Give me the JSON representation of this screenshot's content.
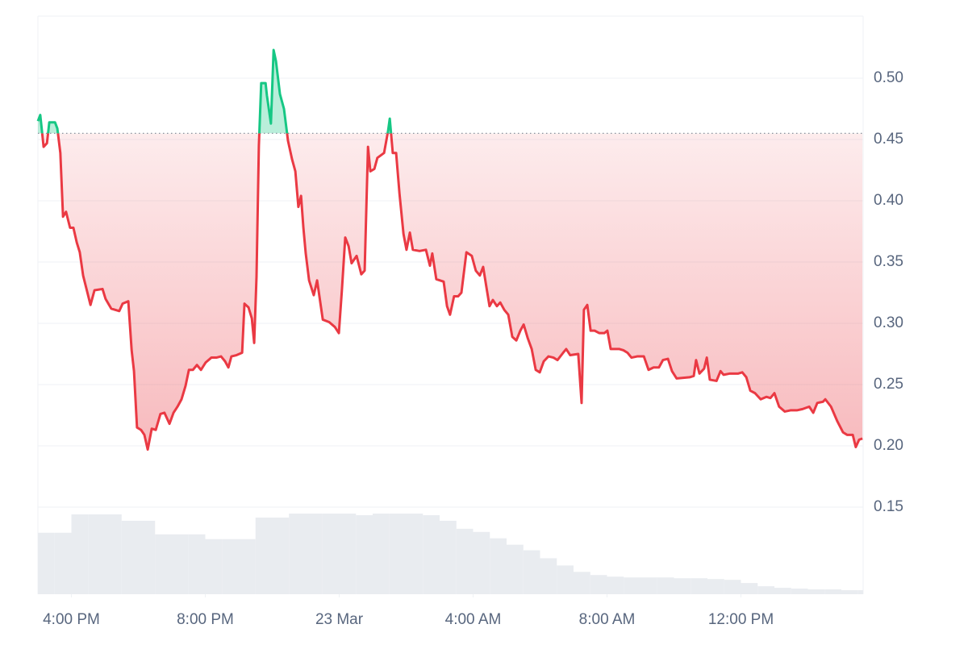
{
  "chart_data": {
    "type": "line",
    "color": "#ea3943",
    "up_color": "#16c784",
    "baseline": 0.455,
    "grid": true,
    "ylim": [
      0.08,
      0.55
    ],
    "yticks": [
      {
        "value": 0.15,
        "label": "0.15"
      },
      {
        "value": 0.2,
        "label": "0.20"
      },
      {
        "value": 0.25,
        "label": "0.25"
      },
      {
        "value": 0.3,
        "label": "0.30"
      },
      {
        "value": 0.35,
        "label": "0.35"
      },
      {
        "value": 0.4,
        "label": "0.40"
      },
      {
        "value": 0.45,
        "label": "0.45"
      },
      {
        "value": 0.5,
        "label": "0.50"
      }
    ],
    "xlim": [
      15,
      39.65
    ],
    "xticks": [
      {
        "value": 16,
        "label": "4:00 PM"
      },
      {
        "value": 20,
        "label": "8:00 PM"
      },
      {
        "value": 24,
        "label": "23 Mar"
      },
      {
        "value": 28,
        "label": "4:00 AM"
      },
      {
        "value": 32,
        "label": "8:00 AM"
      },
      {
        "value": 36,
        "label": "12:00 PM"
      }
    ],
    "x": [
      15.0,
      15.07,
      15.17,
      15.27,
      15.34,
      15.51,
      15.58,
      15.67,
      15.75,
      15.84,
      15.96,
      16.06,
      16.16,
      16.25,
      16.35,
      16.47,
      16.57,
      16.69,
      16.93,
      17.02,
      17.19,
      17.43,
      17.53,
      17.7,
      17.8,
      17.87,
      17.96,
      18.08,
      18.18,
      18.28,
      18.4,
      18.52,
      18.66,
      18.78,
      18.93,
      19.05,
      19.17,
      19.29,
      19.41,
      19.51,
      19.63,
      19.75,
      19.87,
      20.01,
      20.18,
      20.33,
      20.47,
      20.59,
      20.69,
      20.78,
      20.93,
      21.1,
      21.17,
      21.29,
      21.39,
      21.46,
      21.53,
      21.6,
      21.67,
      21.8,
      21.84,
      21.96,
      22.04,
      22.11,
      22.23,
      22.35,
      22.47,
      22.59,
      22.69,
      22.78,
      22.86,
      22.93,
      23.0,
      23.1,
      23.24,
      23.34,
      23.43,
      23.51,
      23.7,
      23.87,
      23.99,
      24.08,
      24.18,
      24.28,
      24.37,
      24.52,
      24.66,
      24.76,
      24.86,
      24.93,
      25.05,
      25.14,
      25.34,
      25.46,
      25.51,
      25.6,
      25.7,
      25.8,
      25.92,
      26.01,
      26.11,
      26.2,
      26.4,
      26.59,
      26.71,
      26.78,
      26.9,
      27.12,
      27.22,
      27.31,
      27.43,
      27.55,
      27.65,
      27.8,
      27.96,
      28.08,
      28.2,
      28.3,
      28.4,
      28.49,
      28.59,
      28.71,
      28.81,
      28.93,
      29.05,
      29.17,
      29.29,
      29.41,
      29.51,
      29.63,
      29.75,
      29.87,
      29.99,
      30.11,
      30.25,
      30.4,
      30.52,
      30.69,
      30.78,
      30.9,
      31.14,
      31.24,
      31.31,
      31.41,
      31.51,
      31.63,
      31.77,
      31.92,
      32.01,
      32.11,
      32.37,
      32.49,
      32.61,
      32.73,
      32.9,
      33.1,
      33.24,
      33.39,
      33.55,
      33.67,
      33.82,
      33.94,
      34.08,
      34.47,
      34.59,
      34.66,
      34.76,
      34.9,
      34.98,
      35.07,
      35.27,
      35.39,
      35.48,
      35.67,
      35.92,
      36.04,
      36.16,
      36.28,
      36.42,
      36.59,
      36.76,
      36.88,
      37.0,
      37.14,
      37.31,
      37.48,
      37.67,
      37.84,
      38.04,
      38.16,
      38.28,
      38.45,
      38.52,
      38.69,
      38.88,
      39.05,
      39.17,
      39.34,
      39.43,
      39.53,
      39.63
    ],
    "values": [
      0.465,
      0.47,
      0.444,
      0.447,
      0.464,
      0.464,
      0.459,
      0.439,
      0.387,
      0.391,
      0.378,
      0.378,
      0.366,
      0.358,
      0.339,
      0.326,
      0.315,
      0.327,
      0.328,
      0.32,
      0.312,
      0.31,
      0.316,
      0.318,
      0.278,
      0.261,
      0.215,
      0.213,
      0.209,
      0.197,
      0.214,
      0.213,
      0.226,
      0.227,
      0.218,
      0.227,
      0.232,
      0.238,
      0.249,
      0.262,
      0.262,
      0.266,
      0.262,
      0.268,
      0.272,
      0.272,
      0.273,
      0.269,
      0.264,
      0.273,
      0.274,
      0.276,
      0.316,
      0.313,
      0.304,
      0.284,
      0.338,
      0.445,
      0.496,
      0.496,
      0.486,
      0.463,
      0.523,
      0.514,
      0.487,
      0.475,
      0.449,
      0.434,
      0.424,
      0.395,
      0.404,
      0.378,
      0.357,
      0.335,
      0.323,
      0.335,
      0.318,
      0.303,
      0.301,
      0.297,
      0.292,
      0.327,
      0.37,
      0.363,
      0.349,
      0.355,
      0.34,
      0.343,
      0.444,
      0.424,
      0.426,
      0.435,
      0.439,
      0.457,
      0.467,
      0.439,
      0.439,
      0.406,
      0.373,
      0.36,
      0.374,
      0.36,
      0.359,
      0.36,
      0.347,
      0.357,
      0.336,
      0.334,
      0.314,
      0.307,
      0.322,
      0.322,
      0.325,
      0.358,
      0.355,
      0.343,
      0.339,
      0.346,
      0.329,
      0.314,
      0.319,
      0.314,
      0.317,
      0.311,
      0.307,
      0.289,
      0.286,
      0.294,
      0.299,
      0.288,
      0.279,
      0.262,
      0.26,
      0.269,
      0.273,
      0.272,
      0.27,
      0.276,
      0.279,
      0.274,
      0.275,
      0.235,
      0.311,
      0.315,
      0.294,
      0.294,
      0.292,
      0.292,
      0.294,
      0.279,
      0.279,
      0.278,
      0.276,
      0.272,
      0.273,
      0.273,
      0.262,
      0.264,
      0.264,
      0.27,
      0.271,
      0.261,
      0.255,
      0.256,
      0.257,
      0.27,
      0.259,
      0.263,
      0.272,
      0.254,
      0.253,
      0.261,
      0.258,
      0.259,
      0.259,
      0.26,
      0.256,
      0.245,
      0.243,
      0.238,
      0.24,
      0.239,
      0.243,
      0.232,
      0.228,
      0.229,
      0.229,
      0.23,
      0.232,
      0.227,
      0.235,
      0.236,
      0.238,
      0.232,
      0.22,
      0.211,
      0.209,
      0.209,
      0.199,
      0.205,
      0.206
    ],
    "volume": {
      "color": "#e9ecf0",
      "x": [
        15,
        15.5,
        16,
        16.5,
        17,
        17.5,
        18,
        18.5,
        19,
        19.5,
        20,
        20.5,
        21,
        21.5,
        22,
        22.5,
        23,
        23.5,
        24,
        24.5,
        25,
        25.5,
        26,
        26.5,
        27,
        27.5,
        28,
        28.5,
        29,
        29.5,
        30,
        30.5,
        31,
        31.5,
        32,
        32.5,
        33,
        33.5,
        34,
        34.5,
        35,
        35.5,
        36,
        36.5,
        37,
        37.5,
        38,
        38.5,
        39,
        39.5
      ],
      "values": [
        77,
        77,
        100,
        100,
        100,
        92,
        92,
        75,
        75,
        75,
        69,
        69,
        69,
        96,
        96,
        101,
        101,
        101,
        101,
        99,
        101,
        101,
        101,
        99,
        92,
        82,
        78,
        70,
        62,
        55,
        45,
        36,
        28,
        24,
        22,
        21,
        21,
        21,
        20,
        20,
        19,
        18,
        14,
        10,
        8,
        7,
        6,
        6,
        5,
        5
      ]
    }
  }
}
